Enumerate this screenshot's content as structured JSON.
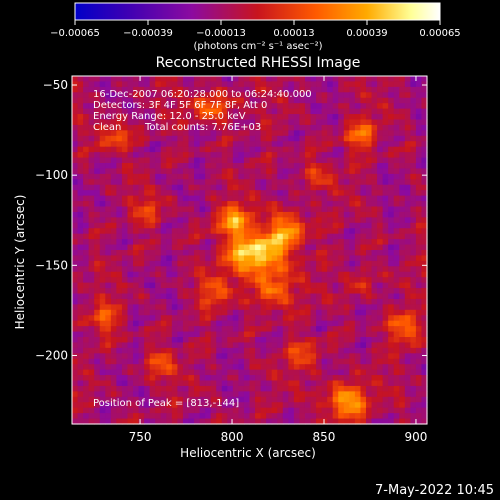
{
  "chart_data": {
    "type": "heatmap",
    "title": "Reconstructed RHESSI Image",
    "xlabel": "Heliocentric X (arcsec)",
    "ylabel": "Heliocentric Y (arcsec)",
    "xlim": [
      713,
      906
    ],
    "ylim": [
      -238,
      -45
    ],
    "x_ticks": [
      750,
      800,
      850,
      900
    ],
    "x_tick_labels": [
      "750",
      "800",
      "850",
      "900"
    ],
    "y_ticks": [
      -50,
      -100,
      -150,
      -200
    ],
    "y_tick_labels": [
      "−50",
      "−100",
      "−150",
      "−200"
    ],
    "colorbar": {
      "vmin": -0.00065,
      "vmax": 0.00065,
      "ticks": [
        -0.00065,
        -0.00039,
        -0.00013,
        0.00013,
        0.00039,
        0.00065
      ],
      "tick_labels": [
        "−0.00065",
        "−0.00039",
        "−0.00013",
        "0.00013",
        "0.00039",
        "0.00065"
      ],
      "unit_label": "(photons cm⁻² s⁻¹ asec⁻²)",
      "colors": [
        "#0000c8",
        "#3c00b4",
        "#8c0aa0",
        "#c8141e",
        "#ff5a00",
        "#ffaa00",
        "#ffff96",
        "#ffffff"
      ]
    },
    "sources": [
      {
        "x": 813,
        "y": -144,
        "amp": 0.00065,
        "sx": 11,
        "sy": 9
      },
      {
        "x": 800,
        "y": -125,
        "amp": 0.00042,
        "sx": 7,
        "sy": 6
      },
      {
        "x": 830,
        "y": -130,
        "amp": 0.00038,
        "sx": 8,
        "sy": 8
      },
      {
        "x": 822,
        "y": -165,
        "amp": 0.00036,
        "sx": 8,
        "sy": 7
      },
      {
        "x": 790,
        "y": -165,
        "amp": 0.00026,
        "sx": 6,
        "sy": 6
      },
      {
        "x": 862,
        "y": -225,
        "amp": 0.00052,
        "sx": 8,
        "sy": 7
      },
      {
        "x": 895,
        "y": -185,
        "amp": 0.00042,
        "sx": 6,
        "sy": 6
      },
      {
        "x": 790,
        "y": -62,
        "amp": 0.00038,
        "sx": 8,
        "sy": 6
      },
      {
        "x": 870,
        "y": -78,
        "amp": 0.00032,
        "sx": 7,
        "sy": 6
      },
      {
        "x": 735,
        "y": -78,
        "amp": 0.00033,
        "sx": 6,
        "sy": 6
      },
      {
        "x": 730,
        "y": -180,
        "amp": 0.0003,
        "sx": 6,
        "sy": 6
      },
      {
        "x": 760,
        "y": -205,
        "amp": 0.00026,
        "sx": 6,
        "sy": 6
      },
      {
        "x": 840,
        "y": -200,
        "amp": 0.00025,
        "sx": 7,
        "sy": 6
      },
      {
        "x": 870,
        "y": -160,
        "amp": 0.00022,
        "sx": 6,
        "sy": 6
      },
      {
        "x": 755,
        "y": -120,
        "amp": 0.0002,
        "sx": 6,
        "sy": 6
      },
      {
        "x": 845,
        "y": -100,
        "amp": 0.0002,
        "sx": 7,
        "sy": 6
      }
    ],
    "annotations": {
      "time_range": "16-Dec-2007 06:20:28.000 to 06:24:40.000",
      "detectors": "Detectors: 3F 4F 5F 6F 7F 8F, Att 0",
      "energy": "Energy Range: 12.0 - 25.0 keV",
      "algorithm": "Clean",
      "total_counts": "Total counts: 7.76E+03",
      "peak": "Position of Peak = [813,-144]"
    }
  },
  "footer": {
    "date_time": "7-May-2022 10:45"
  }
}
